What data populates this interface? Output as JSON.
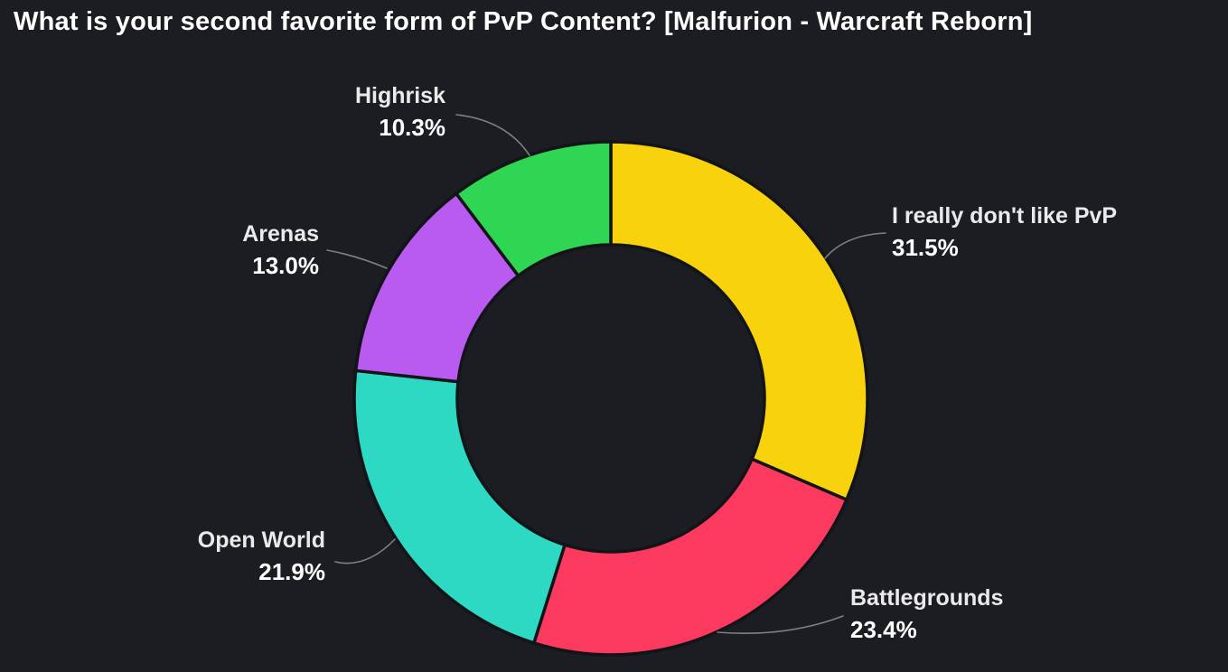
{
  "title": "What is your second favorite form of PvP Content? [Malfurion - Warcraft Reborn]",
  "background_color": "#1b1d22",
  "text_color": "#ffffff",
  "chart_data": {
    "type": "pie",
    "donut": true,
    "title": "What is your second favorite form of PvP Content? [Malfurion - Warcraft Reborn]",
    "start_angle_deg": 0,
    "direction": "clockwise",
    "legend": "none",
    "label_style": "outside-with-leader-lines",
    "slice_border_color": "#121418",
    "leader_line_color": "#9a9a9a",
    "slices": [
      {
        "label": "I really don't like PvP",
        "value": 31.5,
        "pct_label": "31.5%",
        "color": "#f9d20e"
      },
      {
        "label": "Battlegrounds",
        "value": 23.4,
        "pct_label": "23.4%",
        "color": "#fc3a60"
      },
      {
        "label": "Open World",
        "value": 21.9,
        "pct_label": "21.9%",
        "color": "#2ed9c3"
      },
      {
        "label": "Arenas",
        "value": 13.0,
        "pct_label": "13.0%",
        "color": "#b95af0"
      },
      {
        "label": "Highrisk",
        "value": 10.3,
        "pct_label": "10.3%",
        "color": "#2ed653"
      }
    ]
  }
}
